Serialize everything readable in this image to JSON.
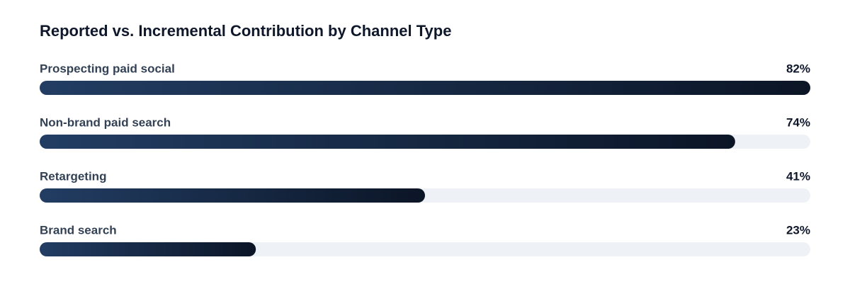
{
  "chart_data": {
    "type": "bar",
    "orientation": "horizontal",
    "title": "Reported vs. Incremental Contribution by Channel Type",
    "categories": [
      "Prospecting paid social",
      "Non-brand paid search",
      "Retargeting",
      "Brand search"
    ],
    "values": [
      82,
      74,
      41,
      23
    ],
    "value_labels": [
      "82%",
      "74%",
      "41%",
      "23%"
    ],
    "xlim": [
      0,
      82
    ],
    "gradient": [
      "#223d63",
      "#0b1526"
    ],
    "track_color": "#eef1f5"
  }
}
